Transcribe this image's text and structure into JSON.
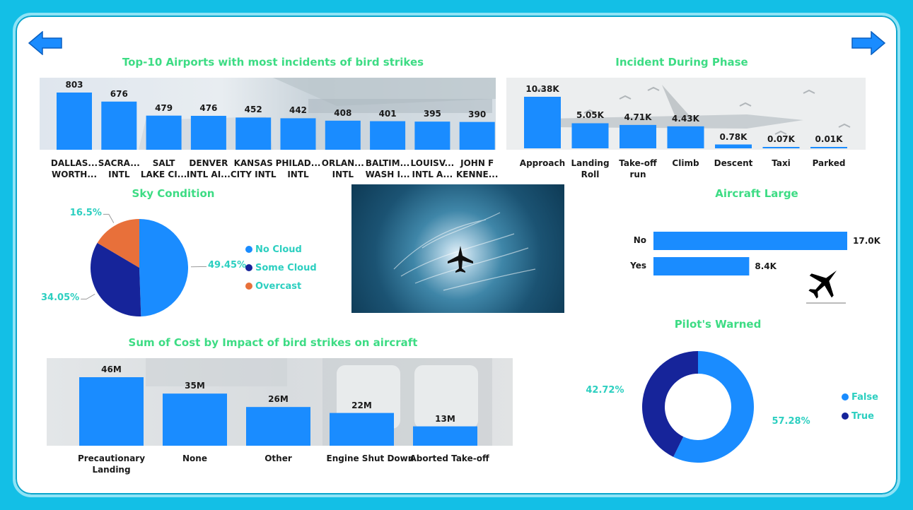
{
  "colors": {
    "bar": "#1a8cff",
    "dark": "#16249a",
    "orange": "#e8703a",
    "title": "#3ddc84",
    "pct": "#2ccfc0"
  },
  "nav": {
    "prev_icon": "left-arrow-icon",
    "next_icon": "right-arrow-icon"
  },
  "charts": {
    "airports": {
      "title": "Top-10 Airports with most incidents of bird strikes",
      "type": "bar",
      "labels": [
        [
          "DALLAS...",
          "WORTH..."
        ],
        [
          "SACRA...",
          "INTL"
        ],
        [
          "SALT",
          "LAKE CI..."
        ],
        [
          "DENVER",
          "INTL AI..."
        ],
        [
          "KANSAS",
          "CITY INTL"
        ],
        [
          "PHILAD...",
          "INTL"
        ],
        [
          "ORLAN...",
          "INTL"
        ],
        [
          "BALTIM...",
          "WASH I..."
        ],
        [
          "LOUISV...",
          "INTL A..."
        ],
        [
          "JOHN F",
          "KENNE..."
        ]
      ],
      "values": [
        803,
        676,
        479,
        476,
        452,
        442,
        408,
        401,
        395,
        390
      ],
      "value_labels": [
        "803",
        "676",
        "479",
        "476",
        "452",
        "442",
        "408",
        "401",
        "395",
        "390"
      ]
    },
    "phase": {
      "title": "Incident During Phase",
      "type": "bar",
      "labels": [
        [
          "Approach"
        ],
        [
          "Landing",
          "Roll"
        ],
        [
          "Take-off",
          "run"
        ],
        [
          "Climb"
        ],
        [
          "Descent"
        ],
        [
          "Taxi"
        ],
        [
          "Parked"
        ]
      ],
      "values": [
        10.38,
        5.05,
        4.71,
        4.43,
        0.78,
        0.07,
        0.01
      ],
      "value_labels": [
        "10.38K",
        "5.05K",
        "4.71K",
        "4.43K",
        "0.78K",
        "0.07K",
        "0.01K"
      ]
    },
    "sky": {
      "title": "Sky Condition",
      "type": "pie",
      "slices": [
        {
          "name": "No Cloud",
          "value": 49.45,
          "label": "49.45%",
          "color": "#1a8cff"
        },
        {
          "name": "Some Cloud",
          "value": 34.05,
          "label": "34.05%",
          "color": "#16249a"
        },
        {
          "name": "Overcast",
          "value": 16.5,
          "label": "16.5%",
          "color": "#e8703a"
        }
      ]
    },
    "aircraft": {
      "title": "Aircraft Large",
      "type": "bar",
      "labels": [
        "No",
        "Yes"
      ],
      "values": [
        17.0,
        8.4
      ],
      "value_labels": [
        "17.0K",
        "8.4K"
      ]
    },
    "pilot": {
      "title": "Pilot's Warned",
      "type": "pie",
      "slices": [
        {
          "name": "False",
          "value": 57.28,
          "label": "57.28%",
          "color": "#1a8cff"
        },
        {
          "name": "True",
          "value": 42.72,
          "label": "42.72%",
          "color": "#16249a"
        }
      ]
    },
    "cost": {
      "title": "Sum of Cost by Impact of bird strikes on aircraft",
      "type": "bar",
      "labels": [
        [
          "Precautionary",
          "Landing"
        ],
        [
          "None"
        ],
        [
          "Other"
        ],
        [
          "Engine Shut Down"
        ],
        [
          "Aborted Take-off"
        ]
      ],
      "values": [
        46,
        35,
        26,
        22,
        13
      ],
      "value_labels": [
        "46M",
        "35M",
        "26M",
        "22M",
        "13M"
      ]
    }
  }
}
